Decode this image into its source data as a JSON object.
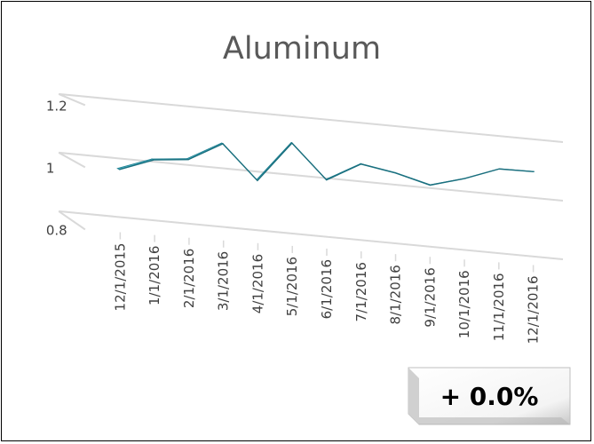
{
  "chart_data": {
    "type": "line",
    "title": "Aluminum",
    "xlabel": "",
    "ylabel": "",
    "categories": [
      "12/1/2015",
      "1/1/2016",
      "2/1/2016",
      "3/1/2016",
      "4/1/2016",
      "5/1/2016",
      "6/1/2016",
      "7/1/2016",
      "8/1/2016",
      "9/1/2016",
      "10/1/2016",
      "11/1/2016",
      "12/1/2016"
    ],
    "series": [
      {
        "values": [
          1.0,
          1.04,
          1.05,
          1.11,
          1.0,
          1.13,
          1.02,
          1.08,
          1.06,
          1.03,
          1.06,
          1.1,
          1.1
        ],
        "color": "#2E9AAE"
      }
    ],
    "yticks": [
      "0.8",
      "1",
      "1.2"
    ],
    "ylim": [
      0.8,
      1.2
    ],
    "grid": true,
    "style": "3d-line",
    "legend": "none"
  },
  "badge": {
    "text": "+ 0.0%"
  },
  "colors": {
    "line_top": "#4FB3C6",
    "line_side": "#1E7F90",
    "grid": "#D9D9D9",
    "title": "#595959"
  }
}
